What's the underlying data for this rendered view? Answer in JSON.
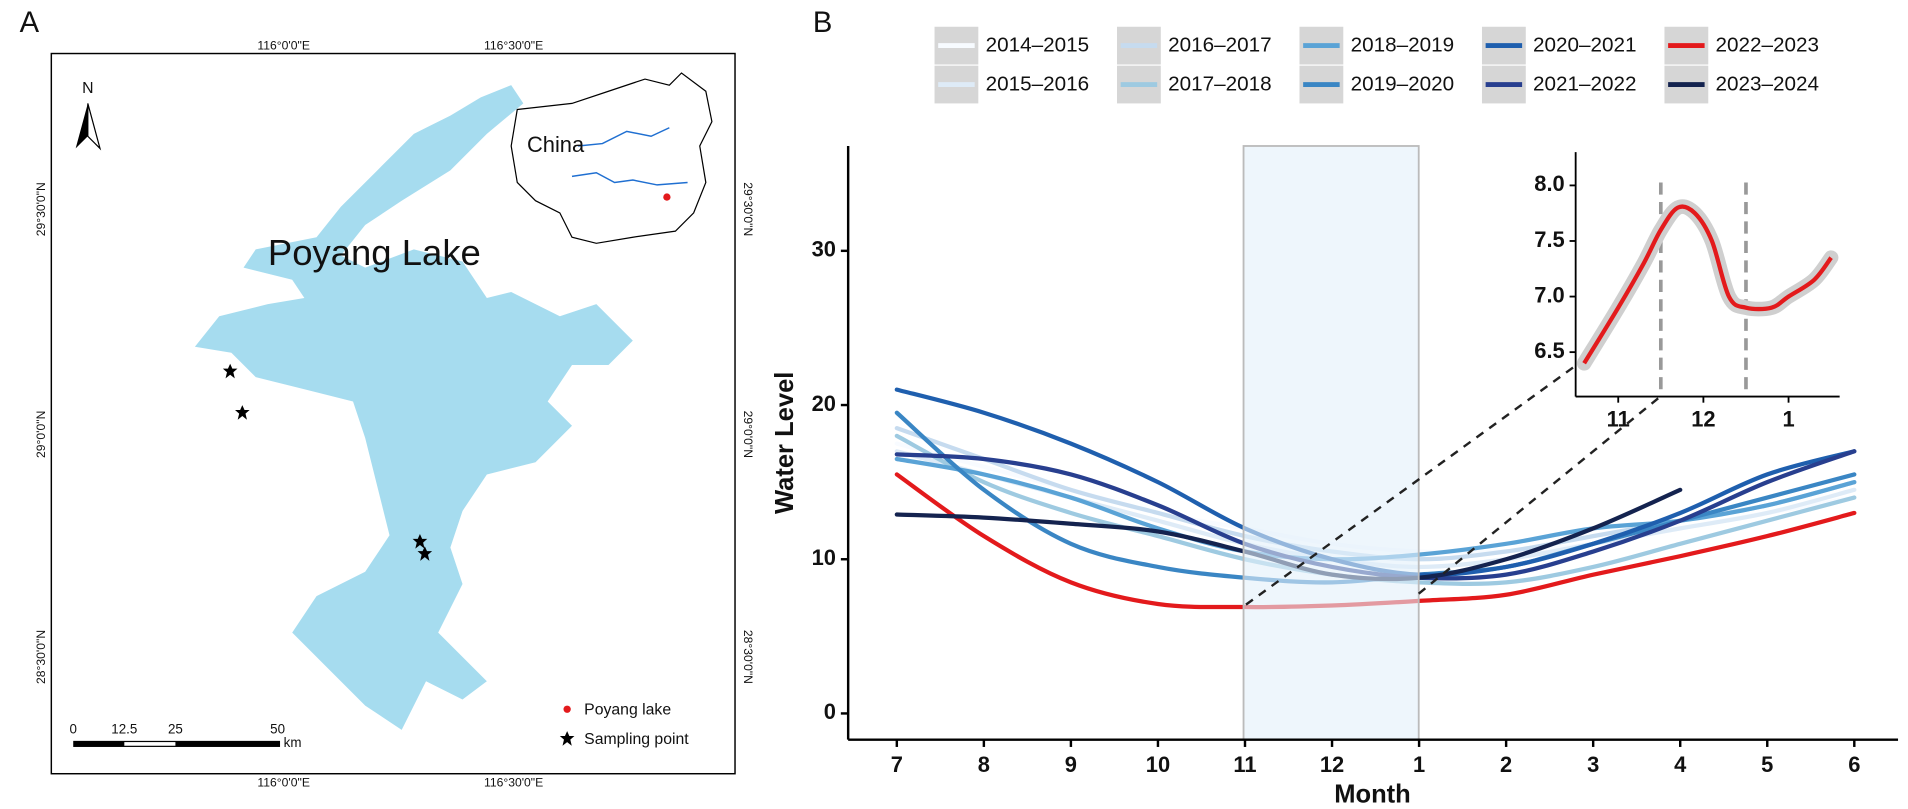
{
  "map": {
    "panel_label": "A",
    "lon_labels": [
      "116°0'0\"E",
      "116°30'0\"E"
    ],
    "lat_labels": [
      "29°30'0\"N",
      "29°0'0\"N",
      "28°30'0\"N"
    ],
    "north": "N",
    "inset_label": "China",
    "lake_label": "Poyang Lake",
    "legend": [
      "Poyang lake",
      "Sampling point"
    ],
    "scale_labels": [
      "0",
      "12.5",
      "25",
      "50"
    ],
    "scale_unit": "km"
  },
  "panel_b_label": "B",
  "chart_data": [
    {
      "type": "line",
      "x_label": "Month",
      "y_label": "Water Level",
      "categories": [
        "7",
        "8",
        "9",
        "10",
        "11",
        "12",
        "1",
        "2",
        "3",
        "4",
        "5",
        "6"
      ],
      "ylim": [
        -1.7,
        36.8
      ],
      "yticks": [
        0,
        10,
        20,
        30
      ],
      "series": [
        {
          "name": "2014–2015",
          "color": "#f7fbff",
          "values": [
            17.5,
            16,
            14.5,
            13,
            12,
            11,
            10.5,
            10.5,
            11,
            12,
            13,
            14
          ]
        },
        {
          "name": "2015–2016",
          "color": "#deebf7",
          "values": [
            17,
            15.5,
            14,
            12.5,
            11,
            10,
            9.5,
            10,
            11,
            12,
            13,
            14.5
          ]
        },
        {
          "name": "2016–2017",
          "color": "#c6dbef",
          "values": [
            18.5,
            16.5,
            14.5,
            13,
            11.5,
            10.5,
            10,
            10.5,
            11.5,
            12.5,
            13.5,
            15
          ]
        },
        {
          "name": "2017–2018",
          "color": "#9ecae1",
          "values": [
            18,
            15,
            13,
            11.5,
            10,
            9,
            8.5,
            8.5,
            9.5,
            11,
            12.5,
            14
          ]
        },
        {
          "name": "2018–2019",
          "color": "#5aa3d6",
          "values": [
            16.5,
            15.5,
            14,
            12,
            10.5,
            10,
            10.3,
            11,
            12,
            12.5,
            13.5,
            15
          ]
        },
        {
          "name": "2019–2020",
          "color": "#3a86c4",
          "values": [
            19.5,
            14.5,
            11,
            9.5,
            8.8,
            8.5,
            9,
            9.5,
            11,
            12.5,
            14,
            15.5
          ]
        },
        {
          "name": "2020–2021",
          "color": "#1f5fae",
          "values": [
            21,
            19.5,
            17.5,
            15,
            12,
            10,
            9,
            9.5,
            11,
            13,
            15.5,
            17
          ]
        },
        {
          "name": "2021–2022",
          "color": "#283f8f",
          "values": [
            16.8,
            16.5,
            15.5,
            13.5,
            11,
            9.5,
            8.8,
            9,
            10.5,
            12.5,
            15,
            17
          ]
        },
        {
          "name": "2022–2023",
          "color": "#e31a1c",
          "values": [
            15.5,
            11.5,
            8.5,
            7.1,
            6.9,
            7,
            7.3,
            7.7,
            9,
            10.2,
            11.5,
            13
          ]
        },
        {
          "name": "2023–2024",
          "color": "#14234f",
          "values": [
            12.9,
            12.7,
            12.3,
            11.8,
            10.5,
            9,
            8.8,
            10,
            12,
            14.5,
            null,
            null
          ]
        }
      ]
    },
    {
      "type": "line",
      "color": "#e31a1c",
      "x": [
        10.6,
        11,
        11.3,
        11.5,
        11.7,
        11.9,
        12.1,
        12.3,
        12.5,
        12.8,
        13,
        13.3,
        13.5
      ],
      "values": [
        6.4,
        6.9,
        7.3,
        7.6,
        7.8,
        7.75,
        7.5,
        7.0,
        6.9,
        6.9,
        7.0,
        7.15,
        7.35
      ],
      "xlim": [
        10.5,
        13.6
      ],
      "xticks": [
        11,
        12,
        {
          "value": 13,
          "label": "1"
        }
      ],
      "ylim": [
        6.1,
        8.3
      ],
      "yticks": [
        6.5,
        {
          "value": 7,
          "label": "7.0"
        },
        7.5,
        {
          "value": 8,
          "label": "8.0"
        }
      ],
      "vlines": [
        11.5,
        12.5
      ]
    }
  ]
}
